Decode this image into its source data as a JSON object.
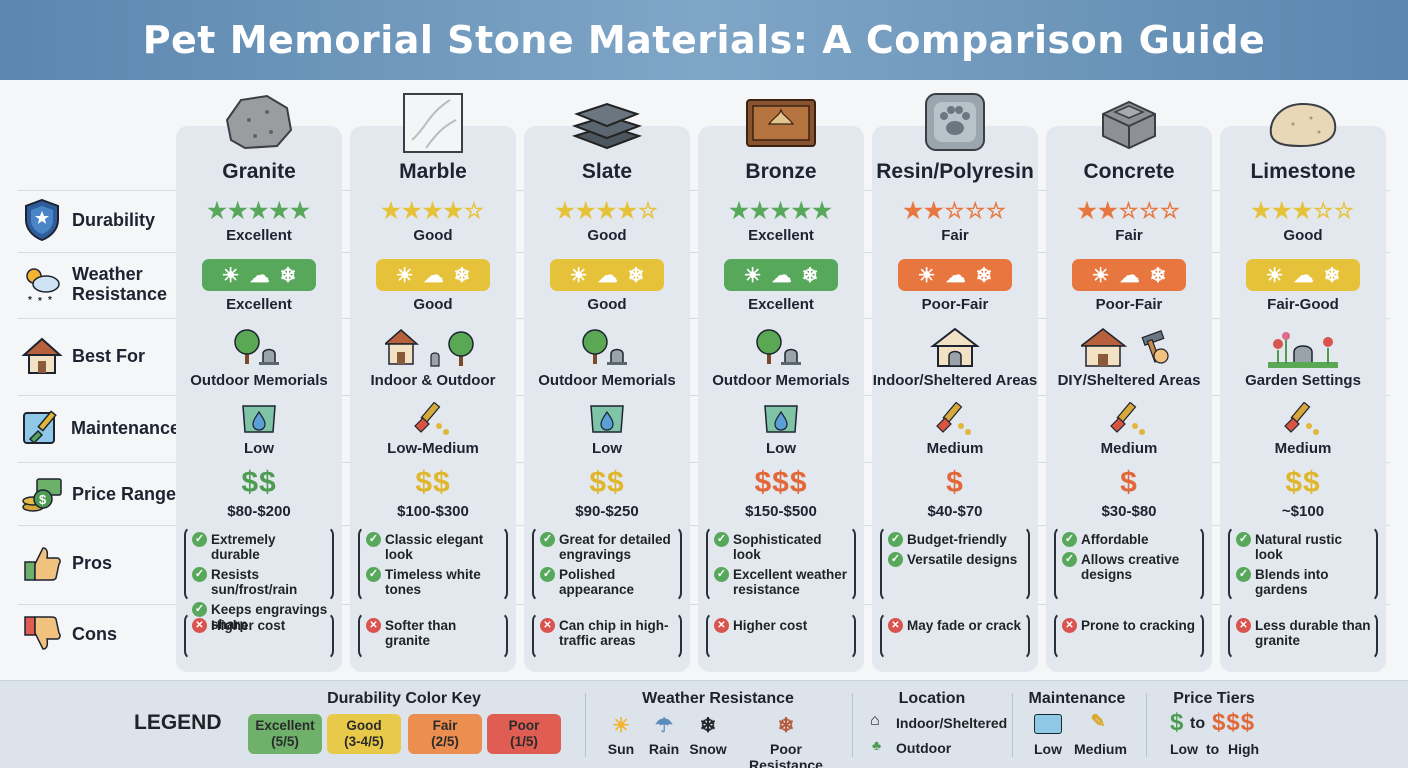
{
  "title": "Pet Memorial Stone Materials: A Comparison Guide",
  "row_labels": {
    "durability": "Durability",
    "weather": "Weather Resistance",
    "best_for": "Best For",
    "maintenance": "Maintenance",
    "price": "Price Range",
    "pros": "Pros",
    "cons": "Cons"
  },
  "colors": {
    "excellent": "#58a85c",
    "good": "#e6c23a",
    "fair": "#e8763f",
    "poor": "#d9534f",
    "price_green": "#4d9c52",
    "price_yellow": "#e0b62c",
    "price_orange": "#e2683a"
  },
  "materials": [
    {
      "name": "Granite",
      "rating": 5,
      "durability": "Excellent",
      "weather_level": "excellent",
      "weather": "Excellent",
      "best_for": "Outdoor Memorials",
      "best_icon": "tree-headstone-icon",
      "maintenance": "Low",
      "maint_icon": "water-drop-icon",
      "price_symbol": "$$",
      "price_color": "green",
      "price": "$80-$200",
      "pros": [
        "Extremely durable",
        "Resists sun/frost/rain",
        "Keeps engravings sharp"
      ],
      "cons": [
        "Higher cost"
      ]
    },
    {
      "name": "Marble",
      "rating": 4,
      "durability": "Good",
      "weather_level": "good",
      "weather": "Good",
      "best_for": "Indoor & Outdoor",
      "best_icon": "house-tree-icon",
      "maintenance": "Low-Medium",
      "maint_icon": "brush-drops-icon",
      "price_symbol": "$$",
      "price_color": "yellow",
      "price": "$100-$300",
      "pros": [
        "Classic elegant look",
        "Timeless white tones"
      ],
      "cons": [
        "Softer than granite"
      ]
    },
    {
      "name": "Slate",
      "rating": 4,
      "durability": "Good",
      "weather_level": "good",
      "weather": "Good",
      "best_for": "Outdoor Memorials",
      "best_icon": "tree-headstone-icon",
      "maintenance": "Low",
      "maint_icon": "water-drop-icon",
      "price_symbol": "$$",
      "price_color": "yellow",
      "price": "$90-$250",
      "pros": [
        "Great for detailed engravings",
        "Polished appearance"
      ],
      "cons": [
        "Can chip in high-traffic areas"
      ]
    },
    {
      "name": "Bronze",
      "rating": 5,
      "durability": "Excellent",
      "weather_level": "excellent",
      "weather": "Excellent",
      "best_for": "Outdoor Memorials",
      "best_icon": "tree-headstone-icon",
      "maintenance": "Low",
      "maint_icon": "water-drop-icon",
      "price_symbol": "$$$",
      "price_color": "orange",
      "price": "$150-$500",
      "pros": [
        "Sophisticated look",
        "Excellent weather resistance"
      ],
      "cons": [
        "Higher cost"
      ]
    },
    {
      "name": "Resin/Polyresin",
      "rating": 2,
      "durability": "Fair",
      "weather_level": "fair",
      "weather": "Poor-Fair",
      "best_for": "Indoor/Sheltered Areas",
      "best_icon": "house-headstone-icon",
      "maintenance": "Medium",
      "maint_icon": "brush-drops-icon",
      "price_symbol": "$",
      "price_color": "orange",
      "price": "$40-$70",
      "pros": [
        "Budget-friendly",
        "Versatile designs"
      ],
      "cons": [
        "May fade or crack"
      ]
    },
    {
      "name": "Concrete",
      "rating": 2,
      "durability": "Fair",
      "weather_level": "fair",
      "weather": "Poor-Fair",
      "best_for": "DIY/Sheltered Areas",
      "best_icon": "house-hammer-icon",
      "maintenance": "Medium",
      "maint_icon": "brush-drops-icon",
      "price_symbol": "$",
      "price_color": "orange",
      "price": "$30-$80",
      "pros": [
        "Affordable",
        "Allows creative designs"
      ],
      "cons": [
        "Prone to cracking"
      ]
    },
    {
      "name": "Limestone",
      "rating": 3,
      "durability": "Good",
      "weather_level": "good",
      "weather": "Fair-Good",
      "best_for": "Garden Settings",
      "best_icon": "garden-flowers-icon",
      "maintenance": "Medium",
      "maint_icon": "brush-drops-icon",
      "price_symbol": "$$",
      "price_color": "yellow",
      "price": "~$100",
      "pros": [
        "Natural rustic look",
        "Blends into gardens"
      ],
      "cons": [
        "Less durable than granite"
      ]
    }
  ],
  "legend": {
    "title": "LEGEND",
    "durability_title": "Durability Color Key",
    "durability_keys": [
      {
        "label": "Excellent",
        "sub": "(5/5)",
        "color": "#6fb16a"
      },
      {
        "label": "Good",
        "sub": "(3-4/5)",
        "color": "#e9c94a"
      },
      {
        "label": "Fair",
        "sub": "(2/5)",
        "color": "#ec8e4f"
      },
      {
        "label": "Poor",
        "sub": "(1/5)",
        "color": "#df5d53"
      }
    ],
    "weather_title": "Weather Resistance",
    "weather_keys": [
      "Sun",
      "Rain",
      "Snow",
      "Poor Resistance"
    ],
    "location_title": "Location",
    "location_keys": [
      "Indoor/Sheltered",
      "Outdoor"
    ],
    "maintenance_title": "Maintenance",
    "maintenance_keys": [
      "Low",
      "Medium"
    ],
    "price_title": "Price Tiers",
    "price_low_symbol": "$",
    "price_to": "to",
    "price_high_symbol": "$$$",
    "price_keys": [
      "Low",
      "to",
      "High"
    ]
  }
}
